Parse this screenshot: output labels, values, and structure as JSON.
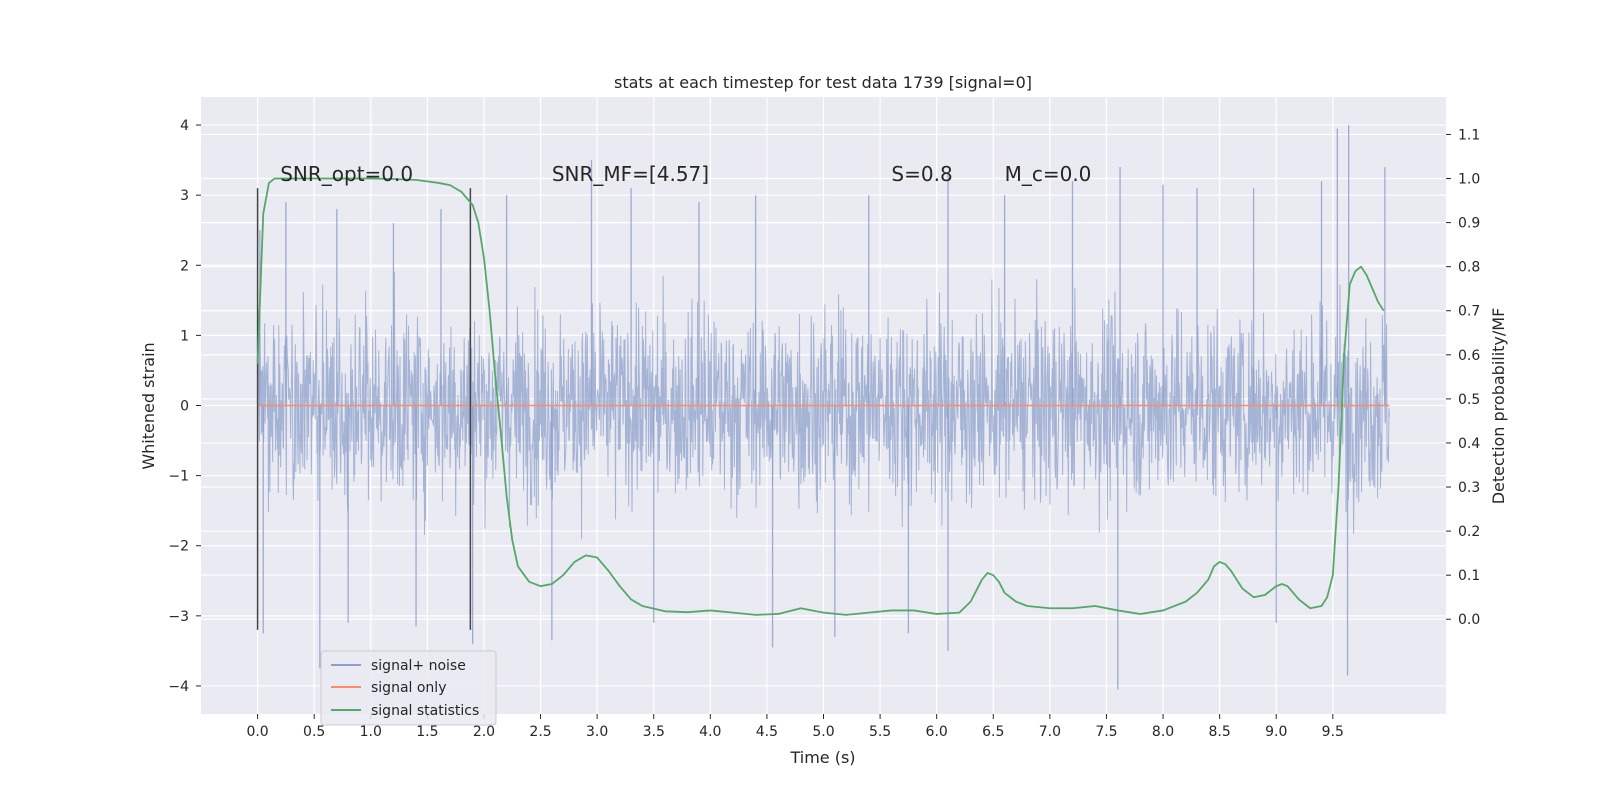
{
  "chart_data": {
    "type": "line",
    "title": "stats at each timestep for test data 1739 [signal=0]",
    "xlabel": "Time (s)",
    "ylabel": "Whitened strain",
    "ylabel_right": "Detection probability/MF",
    "xlim": [
      -0.5,
      10.5
    ],
    "ylim": [
      -4.4,
      4.4
    ],
    "ylim_right": [
      -0.215,
      1.185
    ],
    "xticks": [
      0.0,
      0.5,
      1.0,
      1.5,
      2.0,
      2.5,
      3.0,
      3.5,
      4.0,
      4.5,
      5.0,
      5.5,
      6.0,
      6.5,
      7.0,
      7.5,
      8.0,
      8.5,
      9.0,
      9.5
    ],
    "xtick_labels": [
      "0.0",
      "0.5",
      "1.0",
      "1.5",
      "2.0",
      "2.5",
      "3.0",
      "3.5",
      "4.0",
      "4.5",
      "5.0",
      "5.5",
      "6.0",
      "6.5",
      "7.0",
      "7.5",
      "8.0",
      "8.5",
      "9.0",
      "9.5"
    ],
    "yticks": [
      4,
      3,
      2,
      1,
      0,
      -1,
      -2,
      -3,
      -4
    ],
    "ytick_labels": [
      "4",
      "3",
      "2",
      "1",
      "0",
      "−1",
      "−2",
      "−3",
      "−4"
    ],
    "yticks_right": [
      1.1,
      1.0,
      0.9,
      0.8,
      0.7,
      0.6,
      0.5,
      0.4,
      0.3,
      0.2,
      0.1,
      0.0
    ],
    "ytick_labels_right": [
      "1.1",
      "1.0",
      "0.9",
      "0.8",
      "0.7",
      "0.6",
      "0.5",
      "0.4",
      "0.3",
      "0.2",
      "0.1",
      "0.0"
    ],
    "grid": true,
    "legend_placement": "lower-left",
    "series": [
      {
        "name": "signal+ noise",
        "color": "#8da0cb",
        "axis": "left",
        "kind": "noise",
        "x_range": [
          0.0,
          10.0
        ],
        "band_typical": [
          -1.8,
          1.9
        ],
        "peaks": [
          {
            "x": 0.02,
            "y": 2.5
          },
          {
            "x": 0.05,
            "y": -3.25
          },
          {
            "x": 0.25,
            "y": 2.9
          },
          {
            "x": 0.55,
            "y": -3.75
          },
          {
            "x": 0.7,
            "y": 2.8
          },
          {
            "x": 0.8,
            "y": -3.1
          },
          {
            "x": 1.2,
            "y": 2.6
          },
          {
            "x": 1.4,
            "y": -3.15
          },
          {
            "x": 1.62,
            "y": 2.8
          },
          {
            "x": 1.9,
            "y": -3.4
          },
          {
            "x": 2.2,
            "y": 3.0
          },
          {
            "x": 2.6,
            "y": -3.35
          },
          {
            "x": 2.95,
            "y": 3.5
          },
          {
            "x": 3.3,
            "y": 3.1
          },
          {
            "x": 3.5,
            "y": -3.1
          },
          {
            "x": 3.9,
            "y": 2.9
          },
          {
            "x": 4.4,
            "y": 3.0
          },
          {
            "x": 4.55,
            "y": -3.45
          },
          {
            "x": 5.1,
            "y": -3.3
          },
          {
            "x": 5.4,
            "y": 3.0
          },
          {
            "x": 5.75,
            "y": -3.25
          },
          {
            "x": 6.1,
            "y": 3.3
          },
          {
            "x": 6.1,
            "y": -3.5
          },
          {
            "x": 6.6,
            "y": 3.0
          },
          {
            "x": 7.2,
            "y": 3.2
          },
          {
            "x": 7.6,
            "y": -4.05
          },
          {
            "x": 7.62,
            "y": 3.4
          },
          {
            "x": 8.0,
            "y": 3.15
          },
          {
            "x": 8.3,
            "y": 3.1
          },
          {
            "x": 8.8,
            "y": 3.1
          },
          {
            "x": 9.0,
            "y": -3.1
          },
          {
            "x": 9.4,
            "y": 3.2
          },
          {
            "x": 9.54,
            "y": 3.95
          },
          {
            "x": 9.64,
            "y": 4.0
          },
          {
            "x": 9.63,
            "y": -3.85
          },
          {
            "x": 9.96,
            "y": 3.4
          }
        ]
      },
      {
        "name": "signal only",
        "color": "#fc8d62",
        "axis": "left",
        "x": [
          0.0,
          10.0
        ],
        "y": [
          0.0,
          0.0
        ]
      },
      {
        "name": "signal statistics",
        "color": "#55a868",
        "axis": "right",
        "x": [
          0.0,
          0.05,
          0.1,
          0.15,
          0.2,
          0.3,
          0.5,
          0.8,
          1.0,
          1.2,
          1.4,
          1.6,
          1.7,
          1.8,
          1.9,
          1.95,
          2.0,
          2.05,
          2.1,
          2.15,
          2.2,
          2.25,
          2.3,
          2.4,
          2.5,
          2.6,
          2.7,
          2.8,
          2.9,
          3.0,
          3.1,
          3.2,
          3.3,
          3.4,
          3.6,
          3.8,
          4.0,
          4.2,
          4.4,
          4.6,
          4.8,
          5.0,
          5.2,
          5.4,
          5.6,
          5.8,
          6.0,
          6.2,
          6.3,
          6.4,
          6.45,
          6.5,
          6.55,
          6.6,
          6.7,
          6.8,
          7.0,
          7.2,
          7.4,
          7.6,
          7.8,
          8.0,
          8.2,
          8.3,
          8.4,
          8.45,
          8.5,
          8.55,
          8.6,
          8.7,
          8.8,
          8.9,
          9.0,
          9.05,
          9.1,
          9.2,
          9.3,
          9.4,
          9.45,
          9.5,
          9.55,
          9.6,
          9.65,
          9.7,
          9.75,
          9.8,
          9.85,
          9.9,
          9.95
        ],
        "y": [
          0.58,
          0.92,
          0.99,
          1.0,
          1.0,
          1.0,
          1.0,
          1.0,
          1.0,
          0.999,
          0.997,
          0.99,
          0.985,
          0.97,
          0.94,
          0.9,
          0.82,
          0.7,
          0.55,
          0.42,
          0.28,
          0.18,
          0.12,
          0.085,
          0.075,
          0.08,
          0.1,
          0.13,
          0.145,
          0.14,
          0.11,
          0.075,
          0.045,
          0.03,
          0.018,
          0.016,
          0.02,
          0.015,
          0.01,
          0.012,
          0.025,
          0.015,
          0.01,
          0.015,
          0.02,
          0.02,
          0.012,
          0.015,
          0.04,
          0.09,
          0.105,
          0.1,
          0.085,
          0.06,
          0.04,
          0.03,
          0.025,
          0.025,
          0.03,
          0.02,
          0.012,
          0.02,
          0.04,
          0.06,
          0.09,
          0.12,
          0.13,
          0.125,
          0.11,
          0.07,
          0.05,
          0.055,
          0.075,
          0.08,
          0.075,
          0.045,
          0.025,
          0.03,
          0.05,
          0.1,
          0.3,
          0.6,
          0.76,
          0.79,
          0.8,
          0.78,
          0.75,
          0.72,
          0.7
        ]
      }
    ],
    "vlines": [
      {
        "x": 0.0,
        "y": [
          -3.2,
          3.1
        ],
        "color": "#444444"
      },
      {
        "x": 1.88,
        "y": [
          -3.2,
          3.1
        ],
        "color": "#444444"
      }
    ],
    "annotations": [
      {
        "text": "SNR_opt=0.0",
        "x": 0.2,
        "y": 3.2
      },
      {
        "text": "SNR_MF=[4.57]",
        "x": 2.6,
        "y": 3.2
      },
      {
        "text": "S=0.8",
        "x": 5.6,
        "y": 3.2
      },
      {
        "text": "M_c=0.0",
        "x": 6.6,
        "y": 3.2
      }
    ]
  }
}
